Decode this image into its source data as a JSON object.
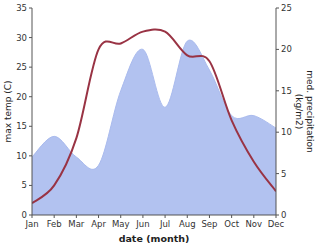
{
  "chart_data": {
    "type": "line",
    "categories": [
      "Jan",
      "Feb",
      "Mar",
      "Apr",
      "May",
      "Jun",
      "Jul",
      "Aug",
      "Sep",
      "Oct",
      "Nov",
      "Dec"
    ],
    "series": [
      {
        "type": "area",
        "axis": "y2",
        "color": "#aabbee",
        "values": [
          7,
          9.5,
          7,
          6,
          15,
          20,
          13,
          21,
          17.5,
          12,
          12,
          10.5
        ]
      },
      {
        "type": "line",
        "color": "#993344",
        "values": [
          2,
          5,
          13,
          28,
          29,
          31,
          31,
          27,
          26,
          16,
          9,
          4
        ]
      }
    ],
    "xlabel": "date (month)",
    "ylabel": "max temp (C)",
    "y2label": "med. precipitation\n(kg/m2)",
    "ylim": [
      0,
      35
    ],
    "yticks": [
      0,
      5,
      10,
      15,
      20,
      25,
      30,
      35
    ],
    "y2lim": [
      0,
      25
    ],
    "y2ticks": [
      0,
      5,
      10,
      15,
      20,
      25
    ],
    "grid": false
  }
}
